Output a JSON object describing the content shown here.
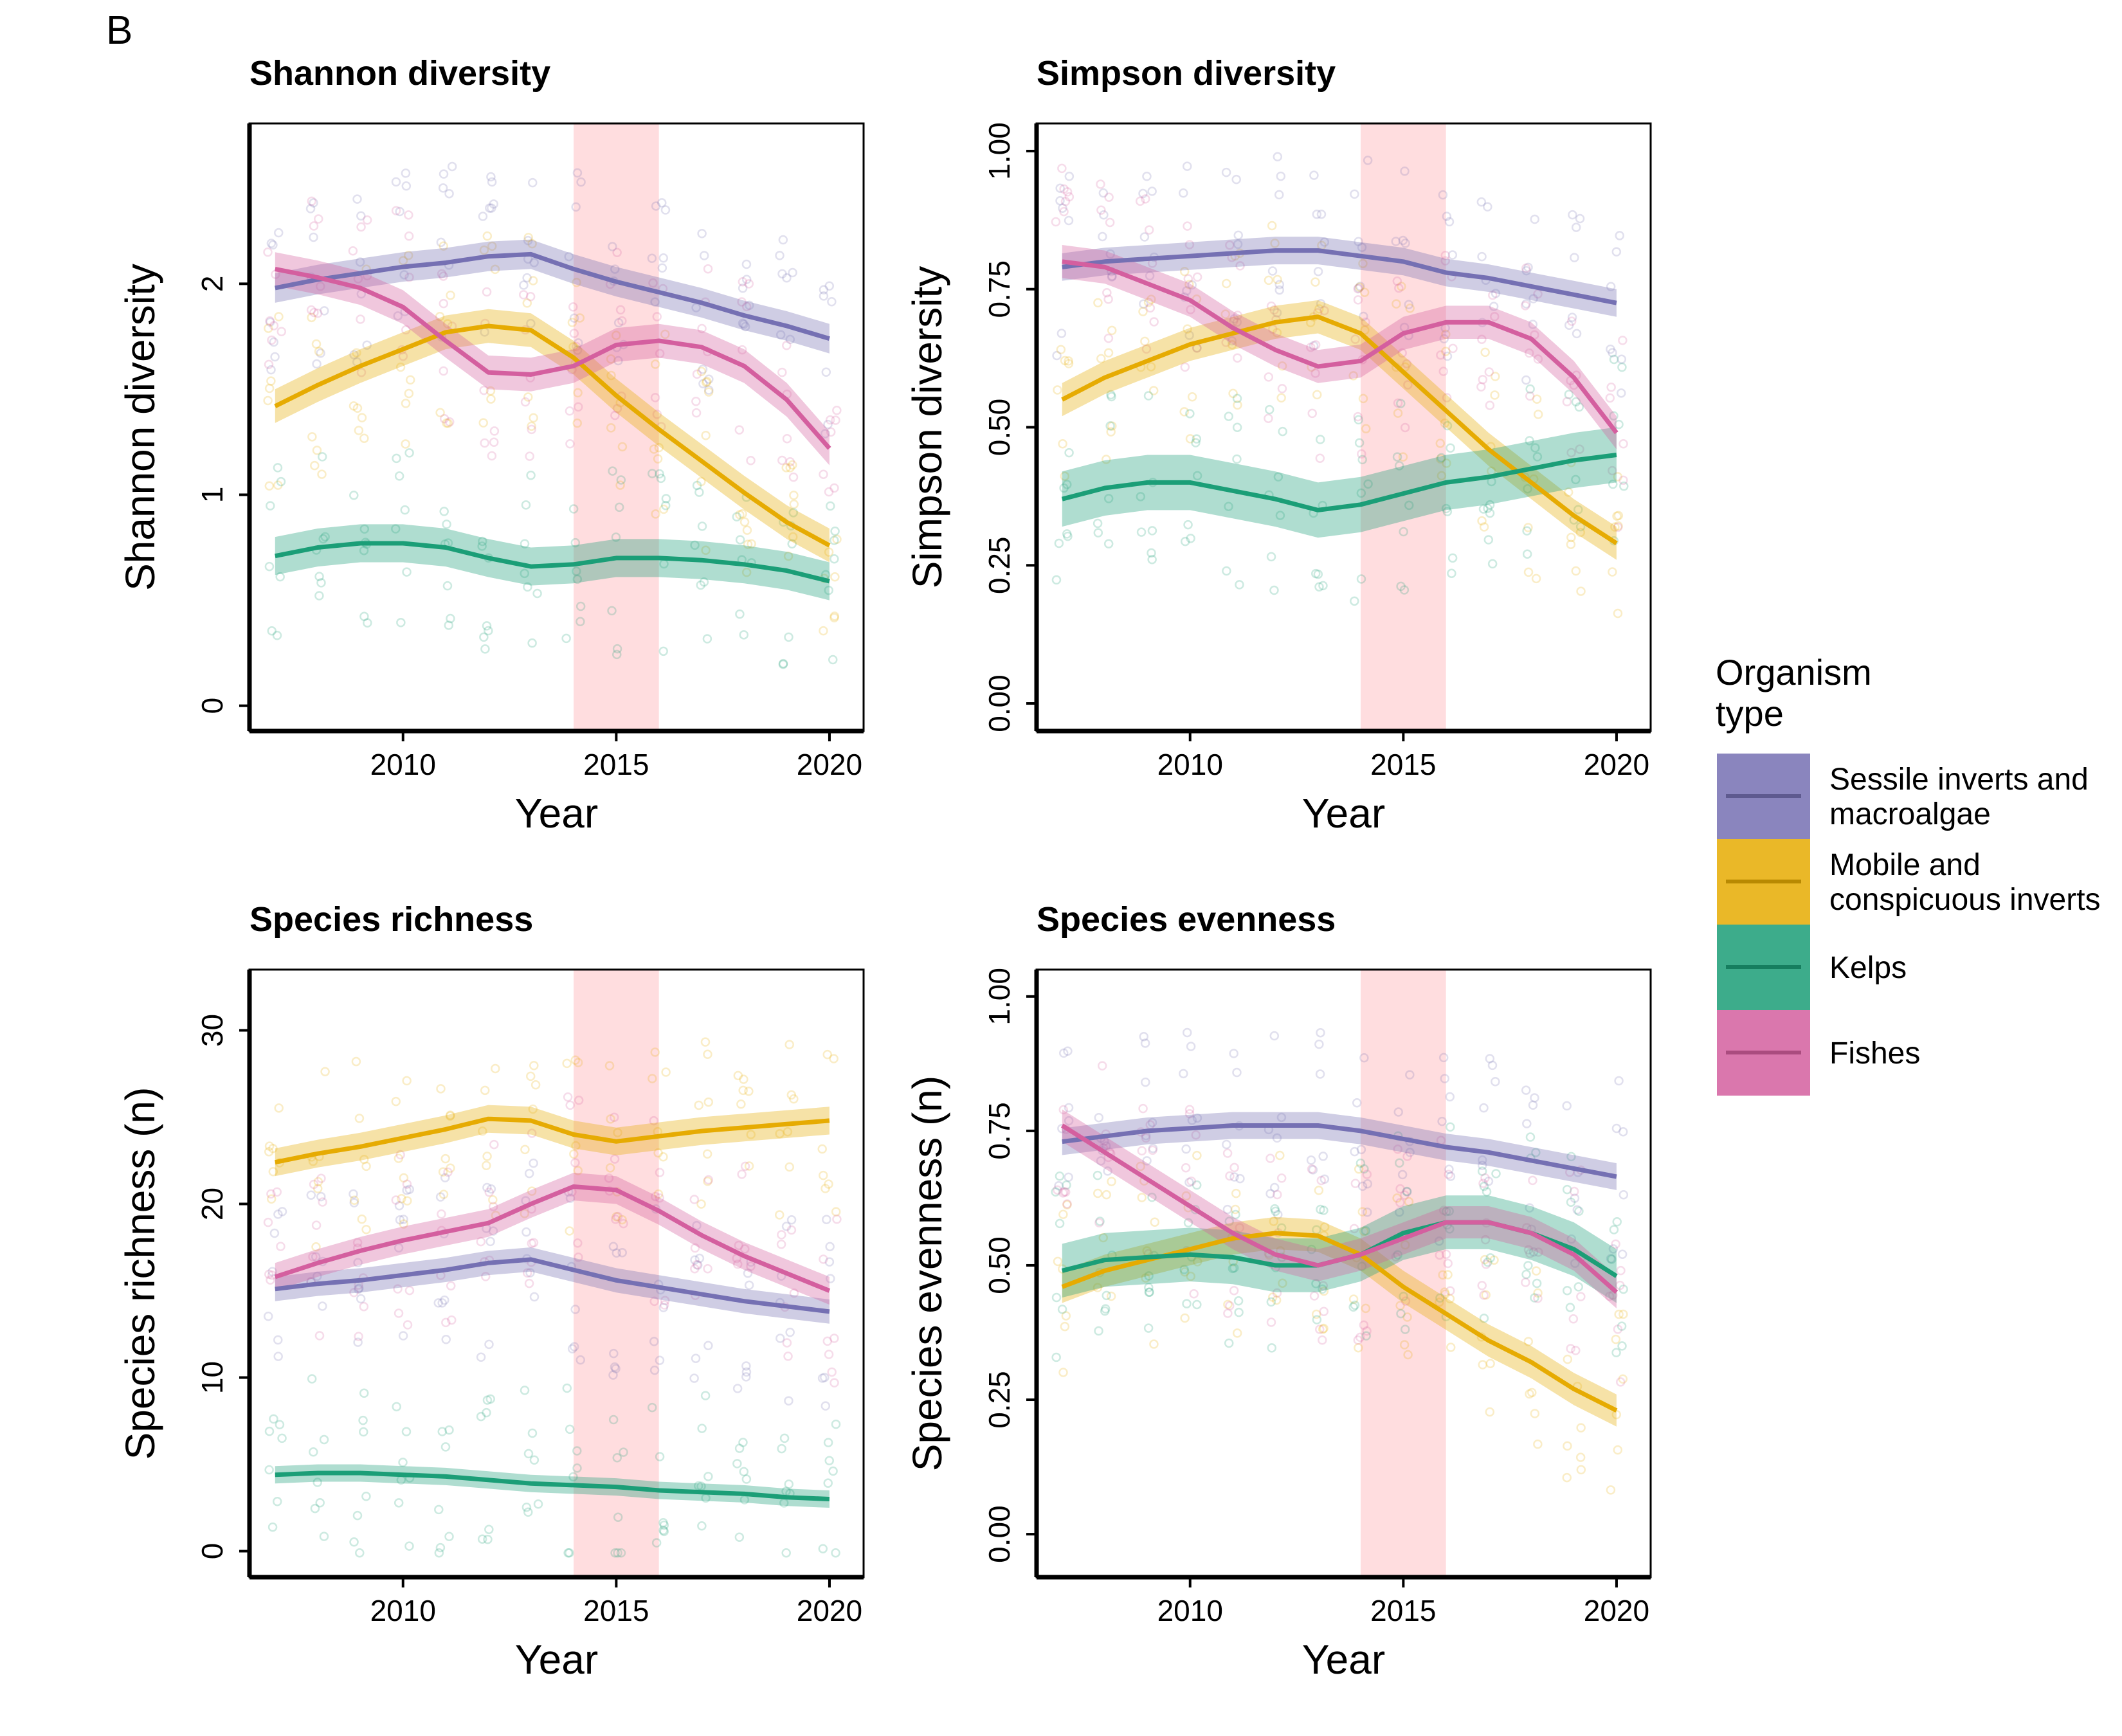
{
  "figure": {
    "panel_tag": "B",
    "legend": {
      "title_lines": [
        "Organism",
        "type"
      ],
      "items": [
        {
          "label_lines": [
            "Sessile inverts and",
            "macroalgae"
          ],
          "color": "#7570b3"
        },
        {
          "label_lines": [
            "Mobile and",
            "conspicuous inverts"
          ],
          "color": "#e6ab02"
        },
        {
          "label_lines": [
            "Kelps"
          ],
          "color": "#1b9e77"
        },
        {
          "label_lines": [
            "Fishes"
          ],
          "color": "#d45f9f"
        }
      ]
    }
  },
  "chart_data": [
    {
      "type": "line",
      "title": "Shannon diversity",
      "xlabel": "Year",
      "ylabel": "Shannon diversity",
      "xlim": [
        2006.4,
        2020.8
      ],
      "ylim": [
        -0.12,
        2.76
      ],
      "x_ticks": [
        2010,
        2015,
        2020
      ],
      "y_ticks": [
        0,
        1,
        2
      ],
      "y_tick_labels": [
        "0",
        "1",
        "2"
      ],
      "highlight_band": [
        2014,
        2016
      ],
      "x": [
        2007,
        2008,
        2009,
        2010,
        2011,
        2012,
        2013,
        2014,
        2015,
        2016,
        2017,
        2018,
        2019,
        2020
      ],
      "series": [
        {
          "name": "Sessile inverts and macroalgae",
          "color": "#7570b3",
          "values": [
            1.98,
            2.02,
            2.05,
            2.08,
            2.1,
            2.13,
            2.14,
            2.07,
            2.01,
            1.96,
            1.91,
            1.85,
            1.8,
            1.74
          ],
          "band": 0.07
        },
        {
          "name": "Mobile and conspicuous inverts",
          "color": "#e6ab02",
          "values": [
            1.42,
            1.52,
            1.61,
            1.69,
            1.77,
            1.8,
            1.78,
            1.65,
            1.47,
            1.31,
            1.16,
            1.01,
            0.87,
            0.76
          ],
          "band": 0.08
        },
        {
          "name": "Kelps",
          "color": "#1b9e77",
          "values": [
            0.71,
            0.75,
            0.77,
            0.77,
            0.75,
            0.7,
            0.66,
            0.67,
            0.7,
            0.7,
            0.69,
            0.67,
            0.64,
            0.59
          ],
          "band": 0.09
        },
        {
          "name": "Fishes",
          "color": "#d45f9f",
          "values": [
            2.07,
            2.03,
            1.98,
            1.89,
            1.73,
            1.58,
            1.57,
            1.61,
            1.71,
            1.73,
            1.7,
            1.61,
            1.45,
            1.22
          ],
          "band": 0.08
        }
      ]
    },
    {
      "type": "line",
      "title": "Simpson diversity",
      "xlabel": "Year",
      "ylabel": "Simpson diversity",
      "xlim": [
        2006.4,
        2020.8
      ],
      "ylim": [
        -0.05,
        1.05
      ],
      "x_ticks": [
        2010,
        2015,
        2020
      ],
      "y_ticks": [
        0,
        0.25,
        0.5,
        0.75,
        1.0
      ],
      "y_tick_labels": [
        "0.00",
        "0.25",
        "0.50",
        "0.75",
        "1.00"
      ],
      "highlight_band": [
        2014,
        2016
      ],
      "x": [
        2007,
        2008,
        2009,
        2010,
        2011,
        2012,
        2013,
        2014,
        2015,
        2016,
        2017,
        2018,
        2019,
        2020
      ],
      "series": [
        {
          "name": "Sessile inverts and macroalgae",
          "color": "#7570b3",
          "values": [
            0.79,
            0.8,
            0.805,
            0.81,
            0.815,
            0.82,
            0.82,
            0.81,
            0.8,
            0.78,
            0.77,
            0.755,
            0.74,
            0.725
          ],
          "band": 0.025
        },
        {
          "name": "Mobile and conspicuous inverts",
          "color": "#e6ab02",
          "values": [
            0.55,
            0.59,
            0.62,
            0.65,
            0.67,
            0.69,
            0.7,
            0.67,
            0.6,
            0.53,
            0.46,
            0.4,
            0.34,
            0.29
          ],
          "band": 0.03
        },
        {
          "name": "Kelps",
          "color": "#1b9e77",
          "values": [
            0.37,
            0.39,
            0.4,
            0.4,
            0.385,
            0.37,
            0.35,
            0.36,
            0.38,
            0.4,
            0.41,
            0.425,
            0.44,
            0.45
          ],
          "band": 0.05
        },
        {
          "name": "Fishes",
          "color": "#d45f9f",
          "values": [
            0.8,
            0.79,
            0.76,
            0.73,
            0.68,
            0.64,
            0.61,
            0.62,
            0.67,
            0.69,
            0.69,
            0.66,
            0.59,
            0.49
          ],
          "band": 0.03
        }
      ]
    },
    {
      "type": "line",
      "title": "Species richness",
      "xlabel": "Year",
      "ylabel": "Species richness (n)",
      "xlim": [
        2006.4,
        2020.8
      ],
      "ylim": [
        -1.5,
        33.5
      ],
      "x_ticks": [
        2010,
        2015,
        2020
      ],
      "y_ticks": [
        0,
        10,
        20,
        30
      ],
      "y_tick_labels": [
        "0",
        "10",
        "20",
        "30"
      ],
      "highlight_band": [
        2014,
        2016
      ],
      "x": [
        2007,
        2008,
        2009,
        2010,
        2011,
        2012,
        2013,
        2014,
        2015,
        2016,
        2017,
        2018,
        2019,
        2020
      ],
      "series": [
        {
          "name": "Sessile inverts and macroalgae",
          "color": "#7570b3",
          "values": [
            15.1,
            15.4,
            15.6,
            15.9,
            16.2,
            16.6,
            16.8,
            16.2,
            15.6,
            15.2,
            14.8,
            14.4,
            14.1,
            13.8
          ],
          "band": 0.7
        },
        {
          "name": "Mobile and conspicuous inverts",
          "color": "#e6ab02",
          "values": [
            22.4,
            22.9,
            23.3,
            23.8,
            24.3,
            24.9,
            24.8,
            24.0,
            23.6,
            23.9,
            24.2,
            24.4,
            24.6,
            24.8
          ],
          "band": 0.8
        },
        {
          "name": "Kelps",
          "color": "#1b9e77",
          "values": [
            4.4,
            4.5,
            4.5,
            4.4,
            4.3,
            4.1,
            3.9,
            3.8,
            3.7,
            3.5,
            3.4,
            3.3,
            3.1,
            3.0
          ],
          "band": 0.5
        },
        {
          "name": "Fishes",
          "color": "#d45f9f",
          "values": [
            15.8,
            16.6,
            17.3,
            17.9,
            18.4,
            18.9,
            20.0,
            21.0,
            20.8,
            19.6,
            18.2,
            17.0,
            16.0,
            15.0
          ],
          "band": 0.8
        }
      ]
    },
    {
      "type": "line",
      "title": "Species evenness",
      "xlabel": "Year",
      "ylabel": "Species evenness (n)",
      "xlim": [
        2006.4,
        2020.8
      ],
      "ylim": [
        -0.08,
        1.05
      ],
      "x_ticks": [
        2010,
        2015,
        2020
      ],
      "y_ticks": [
        0,
        0.25,
        0.5,
        0.75,
        1.0
      ],
      "y_tick_labels": [
        "0.00",
        "0.25",
        "0.50",
        "0.75",
        "1.00"
      ],
      "highlight_band": [
        2014,
        2016
      ],
      "x": [
        2007,
        2008,
        2009,
        2010,
        2011,
        2012,
        2013,
        2014,
        2015,
        2016,
        2017,
        2018,
        2019,
        2020
      ],
      "series": [
        {
          "name": "Sessile inverts and macroalgae",
          "color": "#7570b3",
          "values": [
            0.73,
            0.74,
            0.75,
            0.755,
            0.76,
            0.76,
            0.76,
            0.75,
            0.735,
            0.72,
            0.71,
            0.695,
            0.68,
            0.665
          ],
          "band": 0.025
        },
        {
          "name": "Mobile and conspicuous inverts",
          "color": "#e6ab02",
          "values": [
            0.46,
            0.49,
            0.51,
            0.53,
            0.55,
            0.56,
            0.555,
            0.52,
            0.46,
            0.41,
            0.36,
            0.32,
            0.27,
            0.23
          ],
          "band": 0.03
        },
        {
          "name": "Kelps",
          "color": "#1b9e77",
          "values": [
            0.49,
            0.51,
            0.515,
            0.52,
            0.515,
            0.5,
            0.5,
            0.52,
            0.56,
            0.58,
            0.58,
            0.56,
            0.53,
            0.48
          ],
          "band": 0.05
        },
        {
          "name": "Fishes",
          "color": "#d45f9f",
          "values": [
            0.76,
            0.71,
            0.66,
            0.61,
            0.56,
            0.52,
            0.5,
            0.52,
            0.55,
            0.58,
            0.58,
            0.56,
            0.52,
            0.45
          ],
          "band": 0.03
        }
      ]
    }
  ]
}
